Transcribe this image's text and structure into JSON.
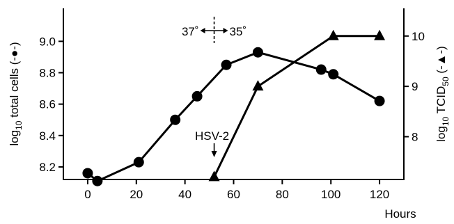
{
  "chart_data": {
    "type": "line",
    "x": {
      "label": "Hours",
      "ticks": [
        0,
        20,
        40,
        60,
        80,
        100,
        120
      ],
      "range": [
        -10,
        130
      ]
    },
    "y_left": {
      "label_base": "log",
      "label_sub": "10",
      "label_text": " total cells (-●-)",
      "ticks": [
        "8.2",
        "8.4",
        "8.6",
        "8.8",
        "9.0"
      ],
      "range": [
        8.12,
        9.21
      ]
    },
    "y_right": {
      "label_base": "log",
      "label_sub1": "10",
      "label_mid": " TCID",
      "label_sub2": "50",
      "label_tail": " (-▲-)",
      "ticks": [
        "8",
        "9",
        "10"
      ],
      "range": [
        7.15,
        10.55
      ]
    },
    "series": [
      {
        "axis": "left",
        "marker": "circle",
        "points": [
          [
            0,
            8.16
          ],
          [
            4,
            8.11
          ],
          [
            21,
            8.23
          ],
          [
            36,
            8.5
          ],
          [
            45,
            8.65
          ],
          [
            57,
            8.85
          ],
          [
            70,
            8.93
          ],
          [
            96,
            8.82
          ],
          [
            101,
            8.79
          ],
          [
            120,
            8.62
          ]
        ]
      },
      {
        "axis": "right",
        "marker": "triangle",
        "points": [
          [
            52,
            7.2
          ],
          [
            70,
            9.0
          ],
          [
            101,
            10.0
          ],
          [
            120,
            10.0
          ]
        ]
      }
    ],
    "annotations": {
      "temp_left": "37˚",
      "temp_right": "35˚",
      "temp_shift_at": 52,
      "virus_label": "HSV-2",
      "virus_at": 52
    },
    "grid": false
  }
}
